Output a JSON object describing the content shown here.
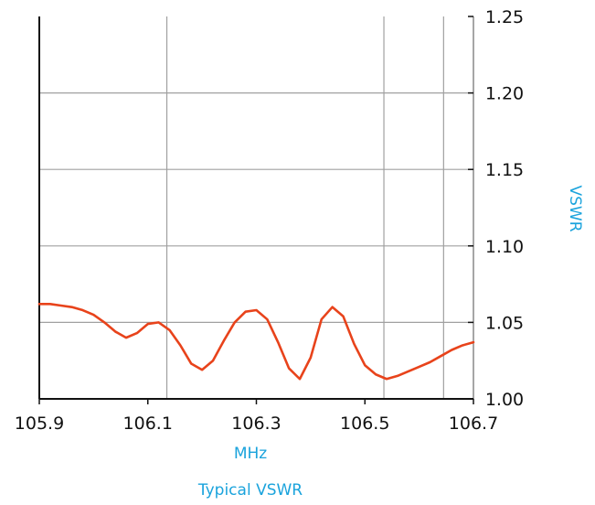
{
  "colors": {
    "series": "#e8431b",
    "axis_label": "#1aa3dc",
    "grid": "#a0a0a0",
    "axis": "#111111"
  },
  "chart_data": {
    "type": "line",
    "title": "Typical VSWR",
    "xlabel": "MHz",
    "ylabel": "VSWR",
    "xlim": [
      105.9,
      106.7
    ],
    "ylim": [
      1.0,
      1.25
    ],
    "y_axis_position": "right",
    "grid": true,
    "x_ticks": [
      105.9,
      106.1,
      106.3,
      106.5,
      106.7
    ],
    "x_tick_labels": [
      "105.9",
      "106.1",
      "106.3",
      "106.5",
      "106.7"
    ],
    "y_ticks": [
      1.0,
      1.05,
      1.1,
      1.15,
      1.2,
      1.25
    ],
    "y_tick_labels": [
      "1.00",
      "1.05",
      "1.10",
      "1.15",
      "1.20",
      "1.25"
    ],
    "series": [
      {
        "x": [
          105.9,
          105.91,
          105.92,
          105.94,
          105.96,
          105.98,
          106.0,
          106.02,
          106.04,
          106.06,
          106.08,
          106.1,
          106.12,
          106.14,
          106.16,
          106.18,
          106.2,
          106.22,
          106.24,
          106.26,
          106.28,
          106.3,
          106.32,
          106.34,
          106.36,
          106.38,
          106.4,
          106.42,
          106.44,
          106.46,
          106.48,
          106.5,
          106.52,
          106.54,
          106.56,
          106.58,
          106.6,
          106.62,
          106.64,
          106.66,
          106.68,
          106.7
        ],
        "y": [
          1.062,
          1.062,
          1.062,
          1.061,
          1.06,
          1.058,
          1.055,
          1.05,
          1.044,
          1.04,
          1.043,
          1.049,
          1.05,
          1.045,
          1.035,
          1.023,
          1.019,
          1.025,
          1.038,
          1.05,
          1.057,
          1.058,
          1.052,
          1.037,
          1.02,
          1.013,
          1.027,
          1.052,
          1.06,
          1.054,
          1.036,
          1.022,
          1.016,
          1.013,
          1.015,
          1.018,
          1.021,
          1.024,
          1.028,
          1.032,
          1.035,
          1.037
        ]
      }
    ]
  }
}
